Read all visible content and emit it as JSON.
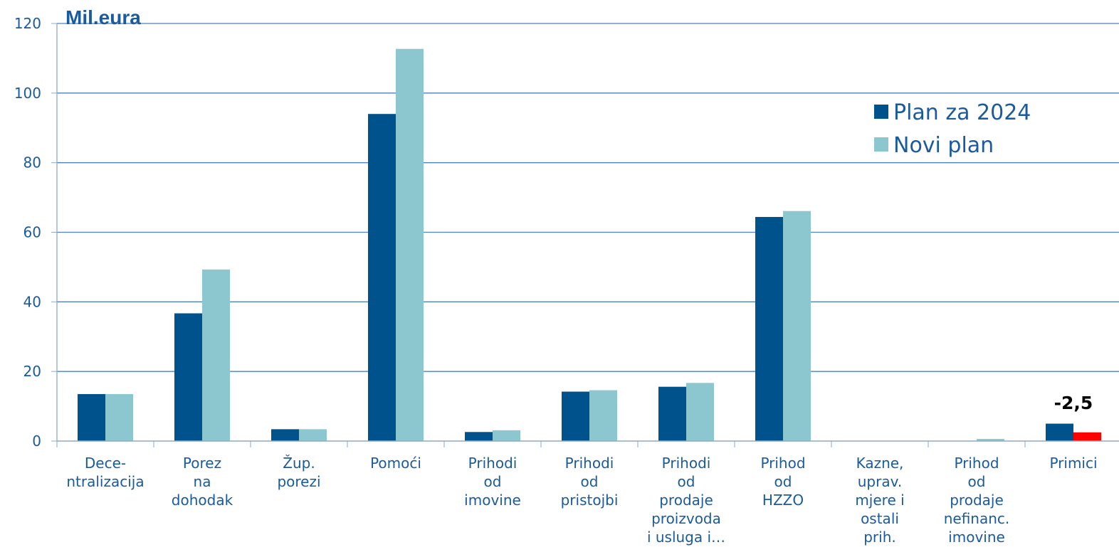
{
  "chart_data": {
    "type": "bar",
    "unit_label": "Mil.eura",
    "categories": [
      [
        "Dece-",
        "ntralizacija"
      ],
      [
        "Porez",
        "na",
        "dohodak"
      ],
      [
        "Žup.",
        "porezi"
      ],
      [
        "Pomoći"
      ],
      [
        "Prihodi",
        "od",
        "imovine"
      ],
      [
        "Prihodi",
        "od",
        "pristojbi"
      ],
      [
        "Prihodi",
        "od",
        "prodaje",
        "proizvoda",
        "i usluga i…"
      ],
      [
        "Prihod",
        "od",
        "HZZO"
      ],
      [
        "Kazne,",
        "uprav.",
        "mjere i",
        "ostali",
        "prih."
      ],
      [
        "Prihod",
        "od",
        "prodaje",
        "nefinanc.",
        "imovine"
      ],
      [
        "Primici"
      ]
    ],
    "series": [
      {
        "name": "Plan za 2024",
        "color": "#00528c",
        "values": [
          13.5,
          36.7,
          3.4,
          94.0,
          2.6,
          14.2,
          15.6,
          64.4,
          0,
          0,
          5.0
        ]
      },
      {
        "name": "Novi plan",
        "color": "#8cc7cf",
        "values": [
          13.5,
          49.3,
          3.4,
          112.7,
          3.1,
          14.6,
          16.7,
          66.1,
          0,
          0.6,
          2.5
        ]
      }
    ],
    "highlight": {
      "category_index": 10,
      "series_index": 1,
      "color": "#ff0000"
    },
    "annotation": {
      "text": "-2,5",
      "category_index": 10
    },
    "ylim": [
      0,
      120
    ],
    "yticks": [
      0,
      20,
      40,
      60,
      80,
      100,
      120
    ],
    "grid": true,
    "legend_position": "top-right"
  }
}
